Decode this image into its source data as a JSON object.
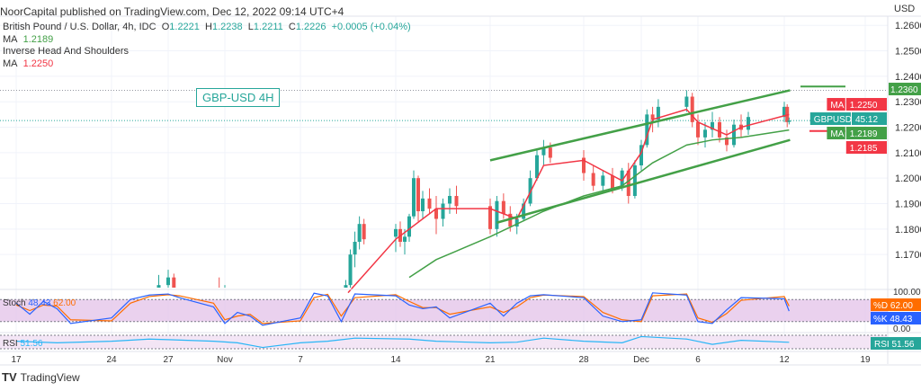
{
  "header": {
    "published": "NoorCapital published on TradingView.com, Dec 12, 2022 09:14 UTC+4"
  },
  "legend": {
    "symbol": "British Pound / U.S. Dollar, 4h, IDC",
    "o_label": "O",
    "o": "1.2221",
    "h_label": "H",
    "h": "1.2238",
    "l_label": "L",
    "l": "1.2211",
    "c_label": "C",
    "c": "1.2226",
    "change": "+0.0005 (+0.04%)",
    "ma1_label": "MA",
    "ma1": "1.2189",
    "study": "Inverse Head And Shoulders",
    "ma2_label": "MA",
    "ma2": "1.2250"
  },
  "annotation": "GBP-USD 4H",
  "currency": "USD",
  "footer": {
    "brand": "TradingView"
  },
  "colors": {
    "up": "#26a69a",
    "down": "#ef5350",
    "ma_fast": "#f23645",
    "ma_slow": "#43a047",
    "trend": "#43a047",
    "stoch_k": "#2962ff",
    "stoch_d": "#ff6d00",
    "rsi": "#29b6f6",
    "stoch_bg": "#e1bee7"
  },
  "chart_data": {
    "type": "candlestick",
    "price_ticks": [
      "1.2600",
      "1.2500",
      "1.2400",
      "1.2300",
      "1.2200",
      "1.2100",
      "1.2000",
      "1.1900",
      "1.1800",
      "1.1700"
    ],
    "ylim": [
      1.157,
      1.2636
    ],
    "time_ticks": [
      {
        "label": "17",
        "date": "2022-10-17"
      },
      {
        "label": "24",
        "date": "2022-10-24"
      },
      {
        "label": "27",
        "date": "2022-10-27"
      },
      {
        "label": "Nov",
        "date": "2022-11-01"
      },
      {
        "label": "7",
        "date": "2022-11-07"
      },
      {
        "label": "14",
        "date": "2022-11-14"
      },
      {
        "label": "21",
        "date": "2022-11-21"
      },
      {
        "label": "28",
        "date": "2022-11-28"
      },
      {
        "label": "Dec",
        "date": "2022-12-01"
      },
      {
        "label": "6",
        "date": "2022-12-06"
      },
      {
        "label": "12",
        "date": "2022-12-12"
      },
      {
        "label": "19",
        "date": "2022-12-19"
      }
    ],
    "candles": [
      [
        "10-26T12",
        1.15,
        1.162,
        1.148,
        1.158
      ],
      [
        "10-27T00",
        1.158,
        1.164,
        1.155,
        1.161
      ],
      [
        "10-27T12",
        1.161,
        1.1625,
        1.15,
        1.152
      ],
      [
        "10-31T12",
        1.155,
        1.161,
        1.148,
        1.15
      ],
      [
        "11-01T00",
        1.15,
        1.158,
        1.145,
        1.152
      ],
      [
        "11-10T08",
        1.14,
        1.16,
        1.138,
        1.158
      ],
      [
        "11-10T16",
        1.158,
        1.172,
        1.156,
        1.17
      ],
      [
        "11-11T00",
        1.17,
        1.179,
        1.165,
        1.175
      ],
      [
        "11-11T08",
        1.175,
        1.185,
        1.172,
        1.182
      ],
      [
        "11-11T16",
        1.182,
        1.184,
        1.174,
        1.176
      ],
      [
        "11-14T00",
        1.177,
        1.182,
        1.171,
        1.18
      ],
      [
        "11-14T08",
        1.18,
        1.183,
        1.173,
        1.175
      ],
      [
        "11-14T16",
        1.175,
        1.18,
        1.17,
        1.177
      ],
      [
        "11-15T00",
        1.177,
        1.186,
        1.175,
        1.185
      ],
      [
        "11-15T08",
        1.185,
        1.203,
        1.184,
        1.2
      ],
      [
        "11-15T16",
        1.2,
        1.201,
        1.183,
        1.187
      ],
      [
        "11-16T00",
        1.187,
        1.195,
        1.184,
        1.192
      ],
      [
        "11-16T12",
        1.192,
        1.196,
        1.186,
        1.188
      ],
      [
        "11-17T00",
        1.188,
        1.193,
        1.178,
        1.184
      ],
      [
        "11-17T12",
        1.184,
        1.192,
        1.181,
        1.19
      ],
      [
        "11-18T00",
        1.19,
        1.196,
        1.186,
        1.193
      ],
      [
        "11-18T12",
        1.193,
        1.197,
        1.186,
        1.189
      ],
      [
        "11-21T00",
        1.189,
        1.192,
        1.178,
        1.18
      ],
      [
        "11-21T12",
        1.18,
        1.193,
        1.177,
        1.191
      ],
      [
        "11-22T00",
        1.191,
        1.194,
        1.184,
        1.186
      ],
      [
        "11-22T12",
        1.186,
        1.189,
        1.179,
        1.181
      ],
      [
        "11-23T00",
        1.181,
        1.186,
        1.178,
        1.184
      ],
      [
        "11-23T12",
        1.184,
        1.192,
        1.183,
        1.19
      ],
      [
        "11-24T00",
        1.19,
        1.203,
        1.189,
        1.2
      ],
      [
        "11-24T12",
        1.2,
        1.211,
        1.199,
        1.209
      ],
      [
        "11-25T00",
        1.209,
        1.215,
        1.205,
        1.212
      ],
      [
        "11-25T12",
        1.212,
        1.214,
        1.206,
        1.208
      ],
      [
        "11-28T00",
        1.208,
        1.211,
        1.199,
        1.202
      ],
      [
        "11-28T12",
        1.202,
        1.205,
        1.195,
        1.197
      ],
      [
        "11-29T00",
        1.197,
        1.203,
        1.194,
        1.201
      ],
      [
        "11-29T12",
        1.201,
        1.204,
        1.194,
        1.196
      ],
      [
        "11-30T00",
        1.196,
        1.204,
        1.195,
        1.203
      ],
      [
        "11-30T08",
        1.203,
        1.206,
        1.19,
        1.193
      ],
      [
        "11-30T16",
        1.193,
        1.207,
        1.192,
        1.205
      ],
      [
        "12-01T00",
        1.205,
        1.215,
        1.203,
        1.213
      ],
      [
        "12-01T12",
        1.213,
        1.227,
        1.212,
        1.225
      ],
      [
        "12-02T00",
        1.225,
        1.228,
        1.218,
        1.223
      ],
      [
        "12-02T12",
        1.223,
        1.231,
        1.22,
        1.228
      ],
      [
        "12-05T00",
        1.228,
        1.2345,
        1.226,
        1.232
      ],
      [
        "12-05T12",
        1.232,
        1.2335,
        1.22,
        1.222
      ],
      [
        "12-06T00",
        1.222,
        1.225,
        1.213,
        1.216
      ],
      [
        "12-06T12",
        1.216,
        1.222,
        1.212,
        1.219
      ],
      [
        "12-07T00",
        1.219,
        1.226,
        1.216,
        1.222
      ],
      [
        "12-07T12",
        1.222,
        1.224,
        1.214,
        1.216
      ],
      [
        "12-08T00",
        1.216,
        1.219,
        1.2105,
        1.213
      ],
      [
        "12-08T12",
        1.213,
        1.223,
        1.212,
        1.221
      ],
      [
        "12-09T00",
        1.221,
        1.225,
        1.216,
        1.219
      ],
      [
        "12-09T12",
        1.219,
        1.226,
        1.217,
        1.224
      ],
      [
        "12-12T00",
        1.224,
        1.23,
        1.222,
        1.228
      ],
      [
        "12-12T06",
        1.228,
        1.229,
        1.22,
        1.222
      ],
      [
        "12-12T10",
        1.2221,
        1.2238,
        1.2211,
        1.2226
      ]
    ],
    "ma_fast": [
      [
        "11-10T12",
        1.155
      ],
      [
        "11-14T00",
        1.176
      ],
      [
        "11-17T00",
        1.188
      ],
      [
        "11-21T00",
        1.188
      ],
      [
        "11-23T00",
        1.184
      ],
      [
        "11-25T00",
        1.205
      ],
      [
        "11-28T00",
        1.207
      ],
      [
        "11-30T00",
        1.199
      ],
      [
        "12-01T00",
        1.21
      ],
      [
        "12-02T00",
        1.223
      ],
      [
        "12-05T00",
        1.227
      ],
      [
        "12-06T00",
        1.222
      ],
      [
        "12-08T00",
        1.217
      ],
      [
        "12-09T00",
        1.22
      ],
      [
        "12-12T10",
        1.225
      ]
    ],
    "ma_slow": [
      [
        "11-15T00",
        1.161
      ],
      [
        "11-17T00",
        1.168
      ],
      [
        "11-21T00",
        1.177
      ],
      [
        "11-23T00",
        1.182
      ],
      [
        "11-25T00",
        1.187
      ],
      [
        "11-28T00",
        1.193
      ],
      [
        "11-30T00",
        1.197
      ],
      [
        "12-02T00",
        1.206
      ],
      [
        "12-05T00",
        1.213
      ],
      [
        "12-07T00",
        1.215
      ],
      [
        "12-09T00",
        1.216
      ],
      [
        "12-12T10",
        1.2189
      ]
    ],
    "trendlines": [
      {
        "from": [
          "11-21T00",
          1.207
        ],
        "to": [
          "12-12T12",
          1.2345
        ]
      },
      {
        "from": [
          "11-21T12",
          1.1825
        ],
        "to": [
          "12-12T12",
          1.215
        ]
      }
    ],
    "levels": [
      {
        "price": 1.236,
        "label": "1.2360",
        "color": "#43a047"
      },
      {
        "price": 1.2185,
        "label": "1.2185",
        "color": "#f23645"
      }
    ],
    "axis_labels": [
      {
        "text": "MA",
        "value": "1.2250",
        "price": 1.225,
        "color": "#f23645"
      },
      {
        "text": "GBPUSD",
        "value": "45:12",
        "price": 1.2226,
        "color": "#26a69a"
      },
      {
        "text": "MA",
        "value": "1.2189",
        "price": 1.2189,
        "color": "#43a047"
      }
    ],
    "stoch": {
      "label": "Stoch",
      "k": "48.43",
      "d": "62.00",
      "k_label": "%K",
      "d_label": "%D",
      "ticks": [
        "100.00",
        "0.00"
      ],
      "k_series": [
        [
          "10-17",
          70
        ],
        [
          "10-18",
          40
        ],
        [
          "10-19",
          75
        ],
        [
          "10-20",
          55
        ],
        [
          "10-21",
          15
        ],
        [
          "10-24",
          30
        ],
        [
          "10-25",
          80
        ],
        [
          "10-26",
          92
        ],
        [
          "10-27",
          95
        ],
        [
          "10-28",
          85
        ],
        [
          "10-31",
          60
        ],
        [
          "11-01",
          15
        ],
        [
          "11-02",
          45
        ],
        [
          "11-03",
          35
        ],
        [
          "11-04",
          10
        ],
        [
          "11-07",
          30
        ],
        [
          "11-08",
          97
        ],
        [
          "11-09",
          90
        ],
        [
          "11-10",
          20
        ],
        [
          "11-11",
          95
        ],
        [
          "11-14",
          90
        ],
        [
          "11-15",
          65
        ],
        [
          "11-16",
          55
        ],
        [
          "11-17",
          60
        ],
        [
          "11-18",
          30
        ],
        [
          "11-21",
          70
        ],
        [
          "11-22",
          35
        ],
        [
          "11-23",
          70
        ],
        [
          "11-24",
          90
        ],
        [
          "11-25",
          93
        ],
        [
          "11-28",
          85
        ],
        [
          "11-29",
          35
        ],
        [
          "11-30",
          20
        ],
        [
          "12-01",
          25
        ],
        [
          "12-02",
          98
        ],
        [
          "12-05",
          92
        ],
        [
          "12-06",
          20
        ],
        [
          "12-07",
          15
        ],
        [
          "12-08",
          52
        ],
        [
          "12-09",
          85
        ],
        [
          "12-12T00",
          82
        ],
        [
          "12-12T10",
          48.43
        ]
      ],
      "d_series": [
        [
          "10-17",
          65
        ],
        [
          "10-18",
          50
        ],
        [
          "10-19",
          65
        ],
        [
          "10-20",
          62
        ],
        [
          "10-21",
          25
        ],
        [
          "10-24",
          22
        ],
        [
          "10-25",
          70
        ],
        [
          "10-26",
          88
        ],
        [
          "10-27",
          93
        ],
        [
          "10-28",
          90
        ],
        [
          "10-31",
          70
        ],
        [
          "11-01",
          25
        ],
        [
          "11-02",
          35
        ],
        [
          "11-03",
          40
        ],
        [
          "11-04",
          15
        ],
        [
          "11-07",
          22
        ],
        [
          "11-08",
          85
        ],
        [
          "11-09",
          94
        ],
        [
          "11-10",
          35
        ],
        [
          "11-11",
          85
        ],
        [
          "11-14",
          93
        ],
        [
          "11-15",
          75
        ],
        [
          "11-16",
          58
        ],
        [
          "11-17",
          58
        ],
        [
          "11-18",
          40
        ],
        [
          "11-21",
          60
        ],
        [
          "11-22",
          45
        ],
        [
          "11-23",
          60
        ],
        [
          "11-24",
          85
        ],
        [
          "11-25",
          92
        ],
        [
          "11-28",
          88
        ],
        [
          "11-29",
          45
        ],
        [
          "11-30",
          25
        ],
        [
          "12-01",
          20
        ],
        [
          "12-02",
          90
        ],
        [
          "12-05",
          95
        ],
        [
          "12-06",
          30
        ],
        [
          "12-07",
          18
        ],
        [
          "12-08",
          42
        ],
        [
          "12-09",
          78
        ],
        [
          "12-12T00",
          88
        ],
        [
          "12-12T10",
          62.0
        ]
      ]
    },
    "rsi": {
      "label": "RSI",
      "value": "51.56",
      "series": [
        [
          "10-17",
          55
        ],
        [
          "10-20",
          50
        ],
        [
          "10-24",
          55
        ],
        [
          "10-26",
          62
        ],
        [
          "10-27",
          60
        ],
        [
          "10-31",
          55
        ],
        [
          "11-02",
          50
        ],
        [
          "11-04",
          35
        ],
        [
          "11-07",
          50
        ],
        [
          "11-09",
          55
        ],
        [
          "11-11",
          65
        ],
        [
          "11-15",
          62
        ],
        [
          "11-17",
          55
        ],
        [
          "11-21",
          50
        ],
        [
          "11-23",
          52
        ],
        [
          "11-25",
          65
        ],
        [
          "11-28",
          55
        ],
        [
          "11-30",
          50
        ],
        [
          "12-01",
          70
        ],
        [
          "12-05",
          62
        ],
        [
          "12-07",
          45
        ],
        [
          "12-09",
          58
        ],
        [
          "12-12T10",
          51.56
        ]
      ]
    }
  }
}
